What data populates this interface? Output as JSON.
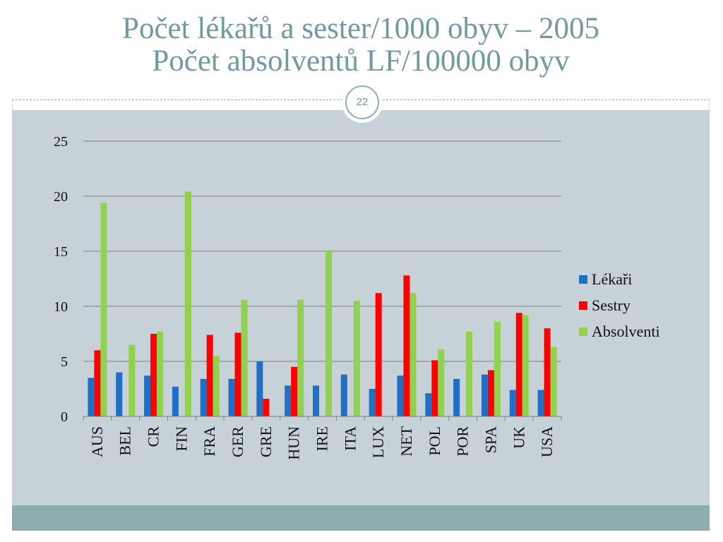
{
  "slide": {
    "title_line1": "Počet lékařů a sester/1000 obyv – 2005",
    "title_line2": "Počet absolventů LF/100000 obyv",
    "page_number": "22"
  },
  "colors": {
    "title": "#6f9a9e",
    "content_bg": "#c6d1d8",
    "footer_bg": "#8dadae",
    "gridline": "#7f7f7f"
  },
  "chart_data": {
    "type": "bar",
    "title": "",
    "xlabel": "",
    "ylabel": "",
    "ylim": [
      0,
      25
    ],
    "yticks": [
      0,
      5,
      10,
      15,
      20,
      25
    ],
    "grid": true,
    "legend_position": "right",
    "categories": [
      "AUS",
      "BEL",
      "CR",
      "FIN",
      "FRA",
      "GER",
      "GRE",
      "HUN",
      "IRE",
      "ITA",
      "LUX",
      "NET",
      "POL",
      "POR",
      "SPA",
      "UK",
      "USA"
    ],
    "series": [
      {
        "name": "Lékaři",
        "color": "#1f6fc5",
        "values": [
          3.5,
          4.0,
          3.7,
          2.7,
          3.4,
          3.4,
          5.0,
          2.8,
          2.8,
          3.8,
          2.5,
          3.7,
          2.1,
          3.4,
          3.8,
          2.4,
          2.4
        ]
      },
      {
        "name": "Sestry",
        "color": "#ff0000",
        "values": [
          6.0,
          null,
          7.5,
          null,
          7.4,
          7.6,
          1.6,
          4.5,
          null,
          null,
          11.2,
          12.8,
          5.1,
          null,
          4.2,
          9.4,
          8.0
        ]
      },
      {
        "name": "Absolventi",
        "color": "#92d050",
        "values": [
          19.4,
          6.5,
          7.7,
          20.4,
          5.5,
          10.6,
          null,
          10.6,
          15.1,
          10.5,
          null,
          11.2,
          6.1,
          7.7,
          8.6,
          9.2,
          6.3
        ]
      }
    ]
  }
}
